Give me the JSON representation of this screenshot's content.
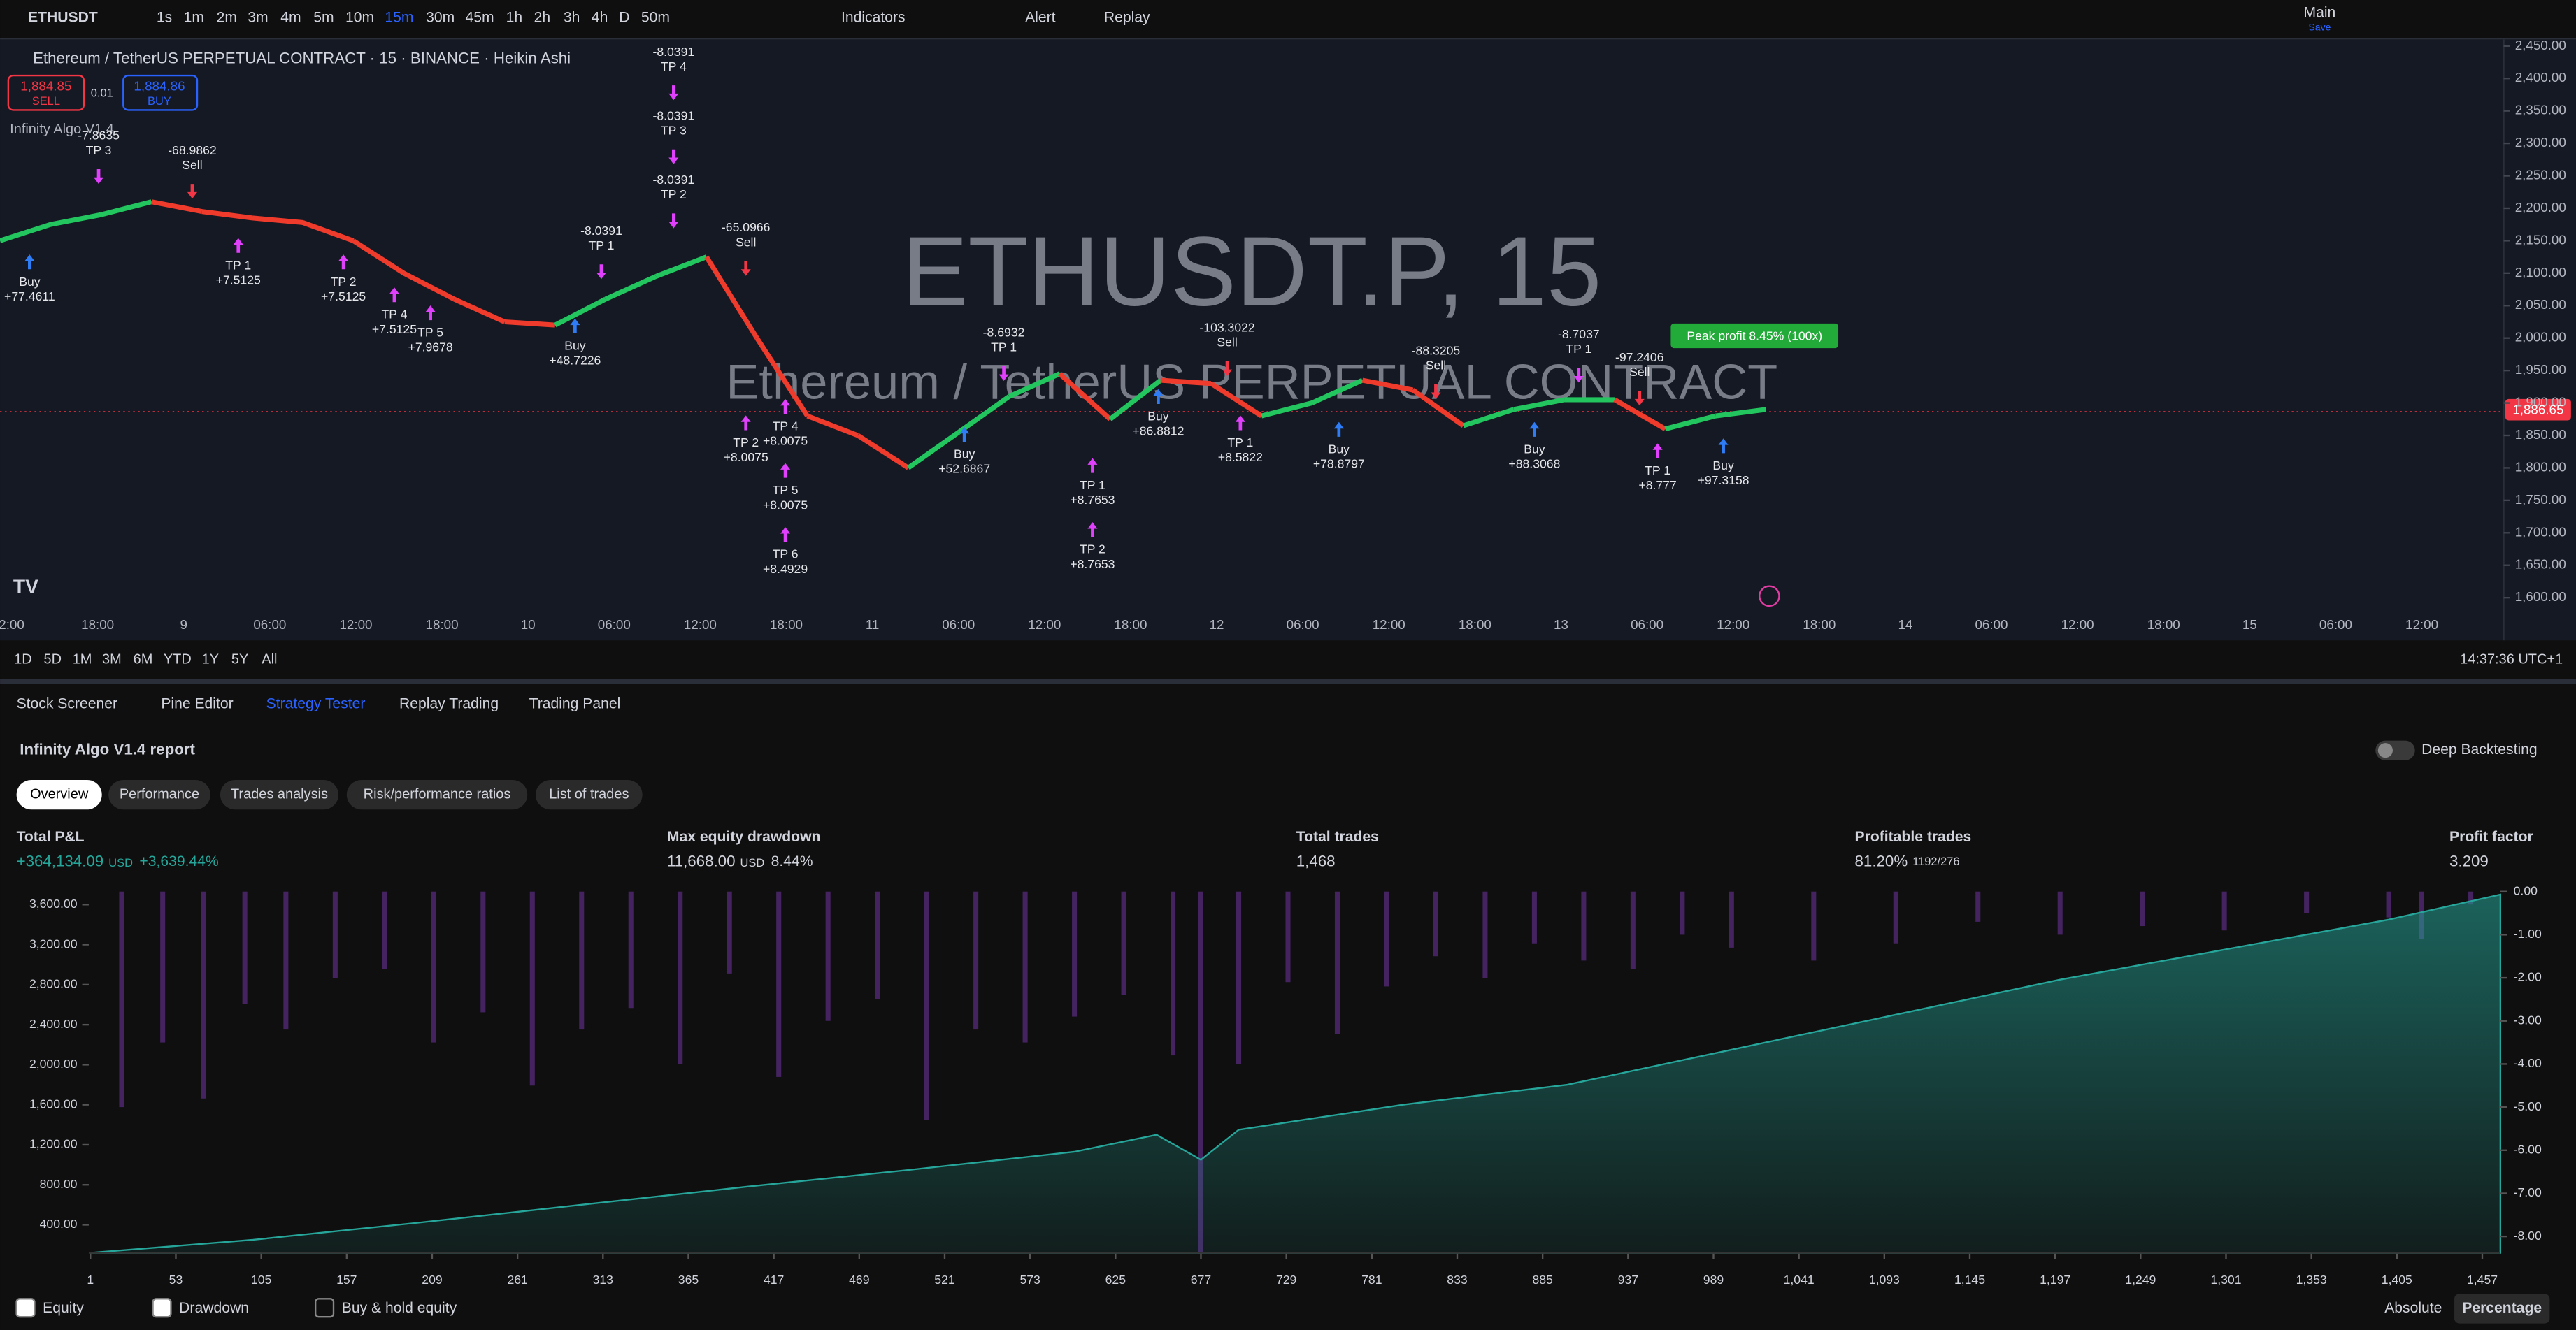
{
  "toolbar": {
    "symbol": "ETHUSDT",
    "intervals": [
      "1s",
      "1m",
      "2m",
      "3m",
      "4m",
      "5m",
      "10m",
      "15m",
      "30m",
      "45m",
      "1h",
      "2h",
      "3h",
      "4h",
      "D",
      "50m"
    ],
    "active_interval": "15m",
    "indicators": "Indicators",
    "alert": "Alert",
    "replay": "Replay",
    "layout": "Main",
    "layout_sub": "Save"
  },
  "chart": {
    "legend": "Ethereum / TetherUS PERPETUAL CONTRACT · 15 · BINANCE · Heikin Ashi",
    "sell_price": "1,884.85",
    "sell": "SELL",
    "spread": "0.01",
    "buy_price": "1,884.86",
    "buy": "BUY",
    "indicator": "Infinity Algo V1.4",
    "watermark": "ETHUSDT.P, 15",
    "watermark_sub": "Ethereum / TetherUS PERPETUAL CONTRACT",
    "peak_label": "Peak profit 8.45% (100x)",
    "last_price": {
      "value": 1886.65,
      "label": "1,886.65"
    },
    "ylim": [
      1580,
      2460
    ],
    "yticks": [
      {
        "value": 2450,
        "label": "2,450.00"
      },
      {
        "value": 2400,
        "label": "2,400.00"
      },
      {
        "value": 2350,
        "label": "2,350.00"
      },
      {
        "value": 2300,
        "label": "2,300.00"
      },
      {
        "value": 2250,
        "label": "2,250.00"
      },
      {
        "value": 2200,
        "label": "2,200.00"
      },
      {
        "value": 2150,
        "label": "2,150.00"
      },
      {
        "value": 2100,
        "label": "2,100.00"
      },
      {
        "value": 2050,
        "label": "2,050.00"
      },
      {
        "value": 2000,
        "label": "2,000.00"
      },
      {
        "value": 1950,
        "label": "1,950.00"
      },
      {
        "value": 1900,
        "label": "1,900.00"
      },
      {
        "value": 1850,
        "label": "1,850.00"
      },
      {
        "value": 1800,
        "label": "1,800.00"
      },
      {
        "value": 1750,
        "label": "1,750.00"
      },
      {
        "value": 1700,
        "label": "1,700.00"
      },
      {
        "value": 1650,
        "label": "1,650.00"
      },
      {
        "value": 1600,
        "label": "1,600.00"
      }
    ],
    "price": [
      2150,
      2175,
      2190,
      2210,
      2195,
      2185,
      2178,
      2150,
      2100,
      2060,
      2025,
      2020,
      2060,
      2095,
      2125,
      2000,
      1880,
      1850,
      1800,
      1855,
      1910,
      1945,
      1875,
      1935,
      1930,
      1880,
      1900,
      1935,
      1920,
      1865,
      1890,
      1905,
      1905,
      1860,
      1880,
      1890
    ],
    "time_ticks": [
      "2:00",
      "18:00",
      "9",
      "06:00",
      "12:00",
      "18:00",
      "10",
      "06:00",
      "12:00",
      "18:00",
      "11",
      "06:00",
      "12:00",
      "18:00",
      "12",
      "06:00",
      "12:00",
      "18:00",
      "13",
      "06:00",
      "12:00",
      "18:00",
      "14",
      "06:00",
      "12:00",
      "18:00",
      "15",
      "06:00",
      "12:00"
    ],
    "signals": [
      [
        "Buy",
        "+77.4611"
      ],
      [
        "-68.9862",
        "Sell"
      ],
      [
        "TP 1",
        "+7.5125"
      ],
      [
        "TP 2",
        "+7.5125"
      ],
      [
        "TP 4",
        "+7.5125"
      ],
      [
        "TP 5",
        "+7.9678"
      ],
      [
        "-8.0391",
        "TP 4"
      ],
      [
        "-8.0391",
        "TP 3"
      ],
      [
        "-8.0391",
        "TP 2"
      ],
      [
        "-8.0391",
        "TP 1"
      ],
      [
        "-65.0966",
        "Sell"
      ],
      [
        "Buy",
        "+48.7226"
      ],
      [
        "TP 2",
        "+8.0075"
      ],
      [
        "TP 4",
        "+8.0075"
      ],
      [
        "TP 5",
        "+8.0075"
      ],
      [
        "TP 6",
        "+8.4929"
      ],
      [
        "Buy",
        "+52.6867"
      ],
      [
        "-8.6932",
        "TP 1"
      ],
      [
        "TP 1",
        "+8.7653"
      ],
      [
        "TP 2",
        "+8.7653"
      ],
      [
        "Buy",
        "+86.8812"
      ],
      [
        "-103.3022",
        "Sell"
      ],
      [
        "TP 1",
        "+8.5822"
      ],
      [
        "Buy",
        "+78.8797"
      ],
      [
        "-88.3205",
        "Sell"
      ],
      [
        "Buy",
        "+88.3068"
      ],
      [
        "-8.7037",
        "TP 1"
      ],
      [
        "-97.2406",
        "Sell"
      ],
      [
        "TP 1",
        "+8.777"
      ],
      [
        "Buy",
        "+97.3158"
      ],
      [
        "-7.8635",
        "TP 3"
      ]
    ],
    "ranges": [
      "1D",
      "5D",
      "1M",
      "3M",
      "6M",
      "YTD",
      "1Y",
      "5Y",
      "All"
    ],
    "timestamp": "14:37:36 UTC+1"
  },
  "panel": {
    "tabs": [
      "Stock Screener",
      "Pine Editor",
      "Strategy Tester",
      "Replay Trading",
      "Trading Panel"
    ],
    "report": "Infinity Algo V1.4 report",
    "deep": "Deep Backtesting",
    "subtabs": [
      "Overview",
      "Performance",
      "Trades analysis",
      "Risk/performance ratios",
      "List of trades"
    ],
    "metrics": [
      {
        "label": "Total P&L",
        "value": "+364,134.09",
        "unit": "USD",
        "extra": "+3,639.44%"
      },
      {
        "label": "Max equity drawdown",
        "value": "11,668.00",
        "unit": "USD",
        "extra": "8.44%"
      },
      {
        "label": "Total trades",
        "value": "1,468"
      },
      {
        "label": "Profitable trades",
        "value": "81.20%",
        "extra": "1192/276"
      },
      {
        "label": "Profit factor",
        "value": "3.209"
      }
    ],
    "legend": [
      "Equity",
      "Drawdown",
      "Buy & hold equity"
    ],
    "modes": [
      "Absolute",
      "Percentage"
    ]
  },
  "chart_data": {
    "type": "area",
    "xlim": [
      0,
      1468
    ],
    "ylim": [
      120,
      3730
    ],
    "y2lim": [
      -8.38,
      0
    ],
    "xticks": [
      1,
      53,
      105,
      157,
      209,
      261,
      313,
      365,
      417,
      469,
      521,
      573,
      625,
      677,
      729,
      781,
      833,
      885,
      937,
      989,
      {
        "value": 1041,
        "label": "1,041"
      },
      {
        "value": 1093,
        "label": "1,093"
      },
      {
        "value": 1145,
        "label": "1,145"
      },
      {
        "value": 1197,
        "label": "1,197"
      },
      {
        "value": 1249,
        "label": "1,249"
      },
      {
        "value": 1301,
        "label": "1,301"
      },
      {
        "value": 1353,
        "label": "1,353"
      },
      {
        "value": 1405,
        "label": "1,405"
      },
      {
        "value": 1457,
        "label": "1,457"
      }
    ],
    "yticks": [
      {
        "value": 3600,
        "label": "3,600.00"
      },
      {
        "value": 3200,
        "label": "3,200.00"
      },
      {
        "value": 2800,
        "label": "2,800.00"
      },
      {
        "value": 2400,
        "label": "2,400.00"
      },
      {
        "value": 2000,
        "label": "2,000.00"
      },
      {
        "value": 1600,
        "label": "1,600.00"
      },
      {
        "value": 1200,
        "label": "1,200.00"
      },
      {
        "value": 800,
        "label": "800.00"
      },
      {
        "value": 400,
        "label": "400.00"
      }
    ],
    "y2ticks": [
      {
        "value": 0,
        "label": "0.00"
      },
      {
        "value": -1,
        "label": "-1.00"
      },
      {
        "value": -2,
        "label": "-2.00"
      },
      {
        "value": -3,
        "label": "-3.00"
      },
      {
        "value": -4,
        "label": "-4.00"
      },
      {
        "value": -5,
        "label": "-5.00"
      },
      {
        "value": -6,
        "label": "-6.00"
      },
      {
        "value": -7,
        "label": "-7.00"
      },
      {
        "value": -8,
        "label": "-8.00"
      }
    ],
    "series": [
      {
        "name": "Equity",
        "color": "#26a69a",
        "x": [
          1,
          100,
          200,
          300,
          400,
          500,
          600,
          650,
          677,
          700,
          800,
          900,
          1000,
          1100,
          1200,
          1300,
          1400,
          1468
        ],
        "values": [
          120,
          250,
          420,
          600,
          780,
          950,
          1130,
          1300,
          1050,
          1350,
          1600,
          1800,
          2150,
          2500,
          2850,
          3150,
          3450,
          3700
        ]
      },
      {
        "name": "Drawdown",
        "color": "#5b2c83",
        "axis": "y2",
        "x": [
          20,
          45,
          70,
          95,
          120,
          150,
          180,
          210,
          240,
          270,
          300,
          330,
          360,
          390,
          420,
          450,
          480,
          510,
          540,
          570,
          600,
          630,
          660,
          677,
          700,
          730,
          760,
          790,
          820,
          850,
          880,
          910,
          940,
          970,
          1000,
          1050,
          1100,
          1150,
          1200,
          1250,
          1300,
          1350,
          1400,
          1420,
          1450
        ],
        "values": [
          -5.0,
          -3.5,
          -4.8,
          -2.6,
          -3.2,
          -2.0,
          -1.8,
          -3.5,
          -2.8,
          -4.5,
          -3.2,
          -2.7,
          -4.0,
          -1.9,
          -4.3,
          -3.0,
          -2.5,
          -5.3,
          -3.2,
          -3.5,
          -2.9,
          -2.4,
          -3.8,
          -8.4,
          -4.0,
          -2.1,
          -3.3,
          -2.2,
          -1.5,
          -2.0,
          -1.2,
          -1.6,
          -1.8,
          -1.0,
          -1.3,
          -1.6,
          -1.2,
          -0.7,
          -1.0,
          -0.8,
          -0.9,
          -0.5,
          -0.6,
          -1.1,
          -0.3
        ]
      }
    ]
  }
}
